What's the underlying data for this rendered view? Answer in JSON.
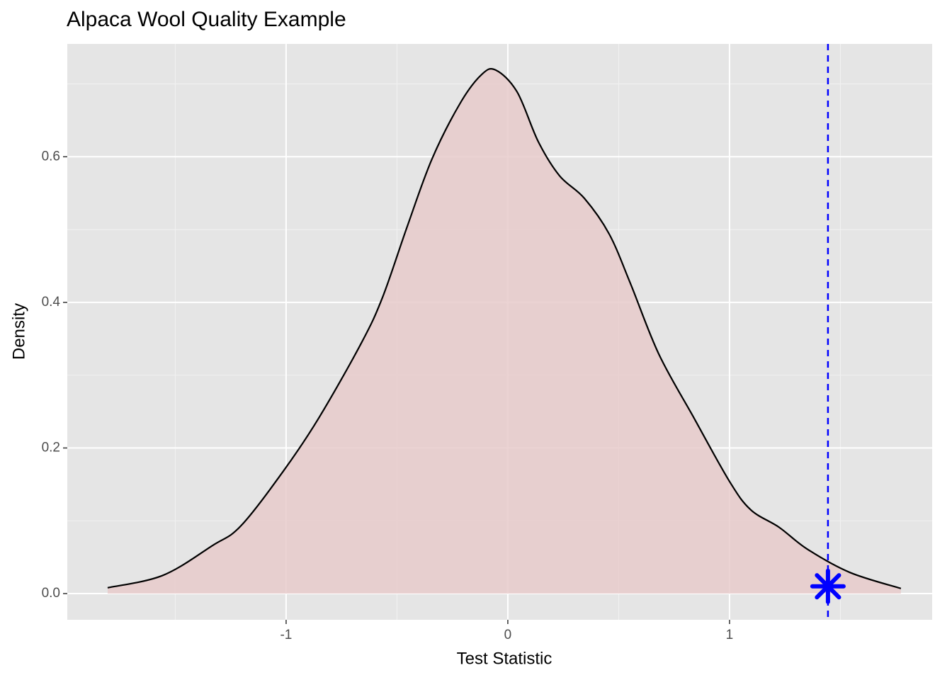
{
  "chart_data": {
    "type": "density",
    "title": "Alpaca Wool Quality Example",
    "x_label": "Test Statistic",
    "y_label": "Density",
    "x": [
      -1.805,
      -1.556,
      -1.332,
      -1.204,
      -1.013,
      -0.853,
      -0.661,
      -0.565,
      -0.454,
      -0.342,
      -0.214,
      -0.118,
      -0.054,
      0.042,
      0.137,
      0.233,
      0.345,
      0.457,
      0.553,
      0.681,
      0.84,
      1.0,
      1.096,
      1.224,
      1.351,
      1.543,
      1.773
    ],
    "values": [
      0.008,
      0.025,
      0.066,
      0.093,
      0.168,
      0.241,
      0.344,
      0.407,
      0.504,
      0.597,
      0.674,
      0.713,
      0.719,
      0.689,
      0.621,
      0.574,
      0.543,
      0.494,
      0.426,
      0.329,
      0.241,
      0.154,
      0.115,
      0.091,
      0.061,
      0.029,
      0.007
    ],
    "color": "#000000",
    "fill": "#e8cbcb",
    "observed": {
      "x": 1.444,
      "y": 0.01,
      "color": "#0000ff"
    },
    "xlim": [
      -1.987,
      1.914
    ],
    "ylim": [
      -0.036,
      0.755
    ],
    "xticks": [
      -1,
      0,
      1
    ],
    "yticks": [
      {
        "value": 0,
        "label": "0.0"
      },
      0.2,
      0.4,
      0.6
    ],
    "x_minor_grid": [
      -1.5,
      -0.5,
      0.5,
      1.5
    ],
    "y_minor_grid": [
      0.1,
      0.3,
      0.5,
      0.7
    ],
    "grid": true
  }
}
